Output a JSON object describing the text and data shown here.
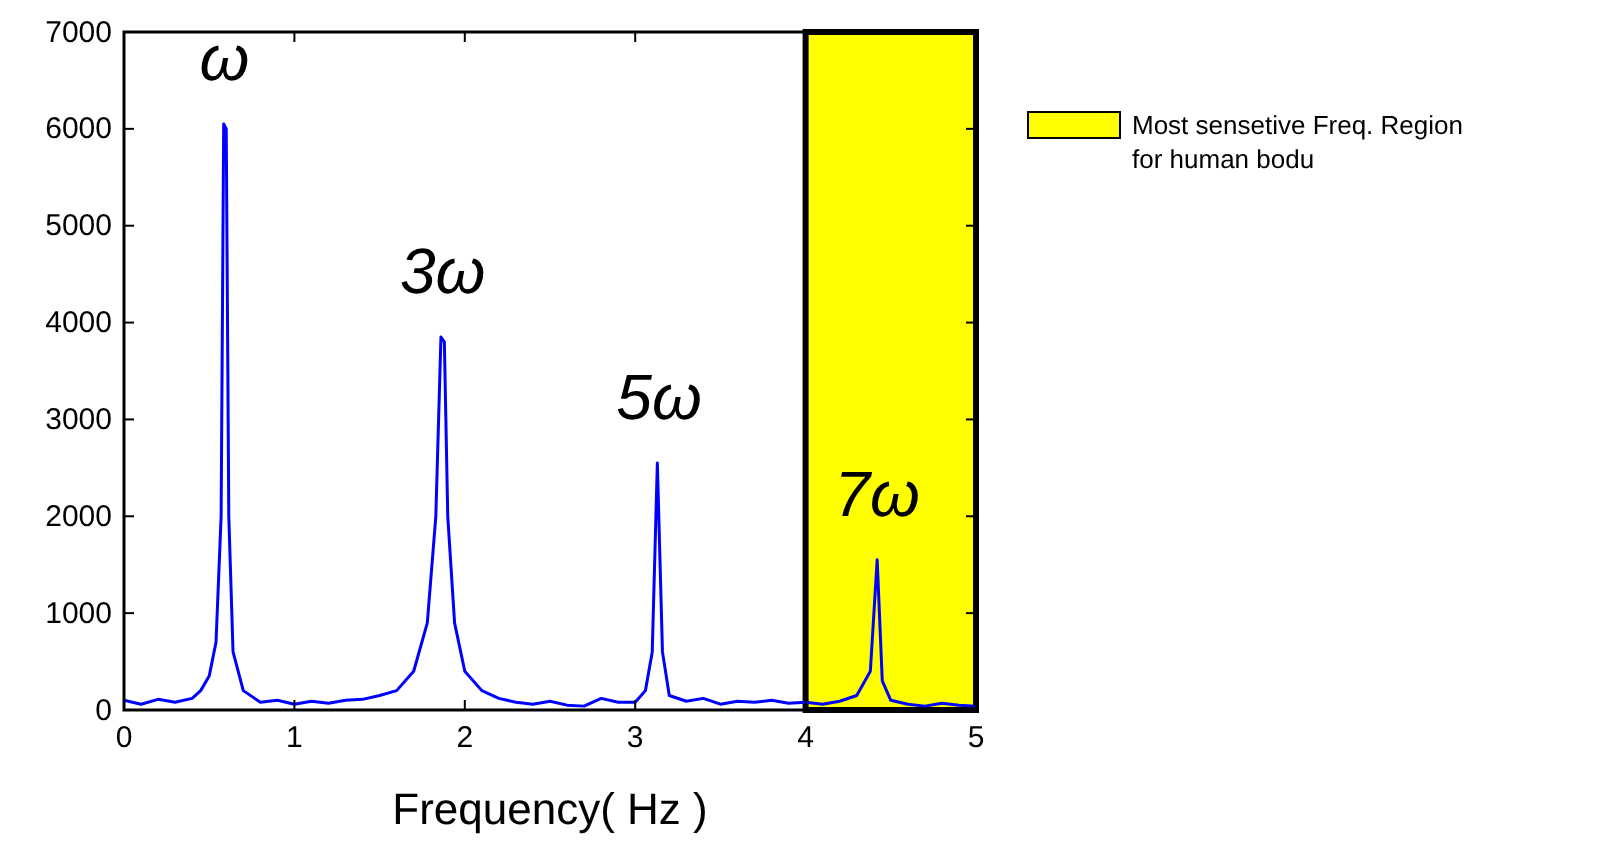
{
  "chart_data": {
    "type": "line",
    "xlabel": "Frequency( Hz )",
    "xlim": [
      0,
      5
    ],
    "xticks": [
      0,
      1,
      2,
      3,
      4,
      5
    ],
    "ylim": [
      0,
      7000
    ],
    "yticks": [
      0,
      1000,
      2000,
      3000,
      4000,
      5000,
      6000,
      7000
    ],
    "legend": "top right",
    "bands": [
      {
        "axis": "x",
        "from": 4,
        "to": 5,
        "label": "Most sensetive Freq. Region for human bodu",
        "color": "#ffff00"
      }
    ],
    "annotations": [
      {
        "text": "ω",
        "x": 0.59,
        "y": 6050
      },
      {
        "text": "3ω",
        "x": 1.87,
        "y": 3850
      },
      {
        "text": "5ω",
        "x": 3.14,
        "y": 2550
      },
      {
        "text": "7ω",
        "x": 4.42,
        "y": 1550
      }
    ],
    "series": [
      {
        "color": "#0000ff",
        "x": [
          0,
          0.1,
          0.2,
          0.3,
          0.4,
          0.45,
          0.5,
          0.54,
          0.57,
          0.585,
          0.6,
          0.615,
          0.64,
          0.7,
          0.8,
          0.9,
          1.0,
          1.1,
          1.2,
          1.3,
          1.4,
          1.5,
          1.6,
          1.7,
          1.78,
          1.83,
          1.86,
          1.88,
          1.9,
          1.94,
          2.0,
          2.1,
          2.2,
          2.3,
          2.4,
          2.5,
          2.6,
          2.7,
          2.8,
          2.9,
          3.0,
          3.06,
          3.1,
          3.13,
          3.16,
          3.2,
          3.3,
          3.4,
          3.5,
          3.6,
          3.7,
          3.8,
          3.9,
          4.0,
          4.1,
          4.2,
          4.3,
          4.38,
          4.42,
          4.45,
          4.5,
          4.6,
          4.7,
          4.8,
          4.9,
          5.0
        ],
        "values": [
          100,
          60,
          110,
          80,
          120,
          200,
          350,
          700,
          2000,
          6050,
          6000,
          2000,
          600,
          200,
          80,
          100,
          60,
          90,
          70,
          100,
          110,
          150,
          200,
          400,
          900,
          2000,
          3850,
          3800,
          2000,
          900,
          400,
          200,
          120,
          80,
          60,
          90,
          50,
          40,
          120,
          80,
          80,
          200,
          600,
          2550,
          600,
          150,
          90,
          120,
          60,
          90,
          80,
          100,
          70,
          80,
          60,
          90,
          150,
          400,
          1550,
          300,
          100,
          60,
          40,
          70,
          50,
          40
        ]
      }
    ]
  }
}
